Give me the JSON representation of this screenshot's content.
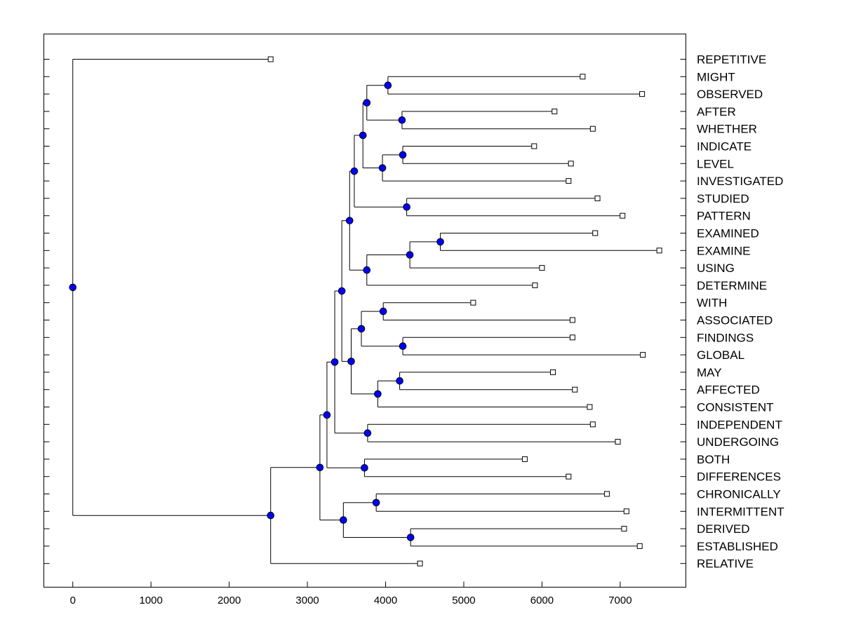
{
  "chart_data": {
    "type": "dendrogram",
    "orientation": "horizontal",
    "x_ticks": [
      0,
      1000,
      2000,
      3000,
      4000,
      5000,
      6000,
      7000
    ],
    "x_tick_labels": [
      "0",
      "1000",
      "2000",
      "3000",
      "4000",
      "5000",
      "6000",
      "7000"
    ],
    "xlim": [
      -370,
      7840
    ],
    "colors": {
      "node": "#0000ff",
      "leaf": "#ffffff",
      "line": "#000000"
    },
    "leaves": [
      {
        "label": "REPETITIVE",
        "x": 2530
      },
      {
        "label": "MIGHT",
        "x": 6520
      },
      {
        "label": "OBSERVED",
        "x": 7280
      },
      {
        "label": "AFTER",
        "x": 6160
      },
      {
        "label": "WHETHER",
        "x": 6650
      },
      {
        "label": "INDICATE",
        "x": 5900
      },
      {
        "label": "LEVEL",
        "x": 6370
      },
      {
        "label": "INVESTIGATED",
        "x": 6340
      },
      {
        "label": "STUDIED",
        "x": 6710
      },
      {
        "label": "PATTERN",
        "x": 7030
      },
      {
        "label": "EXAMINED",
        "x": 6680
      },
      {
        "label": "EXAMINE",
        "x": 7500
      },
      {
        "label": "USING",
        "x": 6000
      },
      {
        "label": "DETERMINE",
        "x": 5910
      },
      {
        "label": "WITH",
        "x": 5120
      },
      {
        "label": "ASSOCIATED",
        "x": 6390
      },
      {
        "label": "FINDINGS",
        "x": 6390
      },
      {
        "label": "GLOBAL",
        "x": 7290
      },
      {
        "label": "MAY",
        "x": 6140
      },
      {
        "label": "AFFECTED",
        "x": 6420
      },
      {
        "label": "CONSISTENT",
        "x": 6610
      },
      {
        "label": "INDEPENDENT",
        "x": 6650
      },
      {
        "label": "UNDERGOING",
        "x": 6970
      },
      {
        "label": "BOTH",
        "x": 5780
      },
      {
        "label": "DIFFERENCES",
        "x": 6340
      },
      {
        "label": "CHRONICALLY",
        "x": 6830
      },
      {
        "label": "INTERMITTENT",
        "x": 7080
      },
      {
        "label": "DERIVED",
        "x": 7050
      },
      {
        "label": "ESTABLISHED",
        "x": 7250
      },
      {
        "label": "RELATIVE",
        "x": 4440
      }
    ],
    "nodes": [
      {
        "id": "n1",
        "x": 4030,
        "children": [
          "L1",
          "L2"
        ]
      },
      {
        "id": "n2",
        "x": 4210,
        "children": [
          "L3",
          "L4"
        ]
      },
      {
        "id": "n3",
        "x": 3760,
        "children": [
          "n1",
          "n2"
        ]
      },
      {
        "id": "n4",
        "x": 4220,
        "children": [
          "L5",
          "L6"
        ]
      },
      {
        "id": "n5",
        "x": 3960,
        "children": [
          "n4",
          "L7"
        ]
      },
      {
        "id": "n6",
        "x": 3710,
        "children": [
          "n3",
          "n5"
        ]
      },
      {
        "id": "n7",
        "x": 4270,
        "children": [
          "L8",
          "L9"
        ]
      },
      {
        "id": "n8",
        "x": 3600,
        "children": [
          "n6",
          "n7"
        ]
      },
      {
        "id": "n9",
        "x": 4700,
        "children": [
          "L10",
          "L11"
        ]
      },
      {
        "id": "n10",
        "x": 4310,
        "children": [
          "n9",
          "L12"
        ]
      },
      {
        "id": "n11",
        "x": 3760,
        "children": [
          "n10",
          "L13"
        ]
      },
      {
        "id": "n12",
        "x": 3540,
        "children": [
          "n8",
          "n11"
        ]
      },
      {
        "id": "n13",
        "x": 3970,
        "children": [
          "L14",
          "L15"
        ]
      },
      {
        "id": "n14",
        "x": 4220,
        "children": [
          "L16",
          "L17"
        ]
      },
      {
        "id": "n15",
        "x": 3690,
        "children": [
          "n13",
          "n14"
        ]
      },
      {
        "id": "n16",
        "x": 4180,
        "children": [
          "L18",
          "L19"
        ]
      },
      {
        "id": "n17",
        "x": 3900,
        "children": [
          "n16",
          "L20"
        ]
      },
      {
        "id": "n18",
        "x": 3560,
        "children": [
          "n15",
          "n17"
        ]
      },
      {
        "id": "n19",
        "x": 3440,
        "children": [
          "n12",
          "n18"
        ]
      },
      {
        "id": "n20",
        "x": 3770,
        "children": [
          "L21",
          "L22"
        ]
      },
      {
        "id": "n21",
        "x": 3350,
        "children": [
          "n19",
          "n20"
        ]
      },
      {
        "id": "n22",
        "x": 3730,
        "children": [
          "L23",
          "L24"
        ]
      },
      {
        "id": "n23",
        "x": 3250,
        "children": [
          "n21",
          "n22"
        ]
      },
      {
        "id": "n24",
        "x": 3880,
        "children": [
          "L25",
          "L26"
        ]
      },
      {
        "id": "n25",
        "x": 4320,
        "children": [
          "L27",
          "L28"
        ]
      },
      {
        "id": "n26",
        "x": 3460,
        "children": [
          "n24",
          "n25"
        ]
      },
      {
        "id": "n27",
        "x": 3160,
        "children": [
          "n23",
          "n26"
        ]
      },
      {
        "id": "n28",
        "x": 2530,
        "children": [
          "n27",
          "L29"
        ]
      },
      {
        "id": "n29",
        "x": 0,
        "children": [
          "L0",
          "n28"
        ]
      }
    ]
  }
}
